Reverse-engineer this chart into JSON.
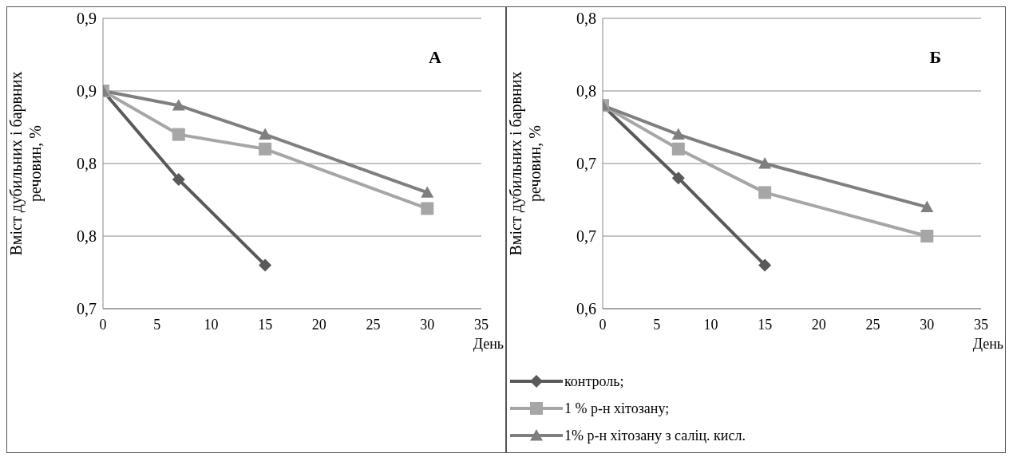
{
  "chart_data": [
    {
      "type": "line",
      "ylabel": "Вміст дубильних і барвних речовин, %",
      "xlabel": "День",
      "annotations": [
        "А"
      ],
      "xlim": [
        0,
        35
      ],
      "xticks": [
        0,
        5,
        10,
        15,
        20,
        25,
        30,
        35
      ],
      "ylim": [
        0.7,
        0.9
      ],
      "yticks": [
        {
          "value": 0.7,
          "label": "0,7"
        },
        {
          "value": 0.75,
          "label": "0,8"
        },
        {
          "value": 0.8,
          "label": "0,8"
        },
        {
          "value": 0.85,
          "label": "0,9"
        },
        {
          "value": 0.9,
          "label": "0,9"
        }
      ],
      "grid": "y",
      "legend": false,
      "series": [
        {
          "color": "#595959",
          "marker": "diamond",
          "x": [
            0,
            7,
            15
          ],
          "values": [
            0.85,
            0.789,
            0.73
          ]
        },
        {
          "color": "#a6a6a6",
          "marker": "square",
          "x": [
            0,
            7,
            15,
            30
          ],
          "values": [
            0.85,
            0.82,
            0.81,
            0.769
          ]
        },
        {
          "color": "#7f7f7f",
          "marker": "triangle",
          "x": [
            0,
            7,
            15,
            30
          ],
          "values": [
            0.85,
            0.84,
            0.82,
            0.78
          ]
        }
      ]
    },
    {
      "type": "line",
      "ylabel": "Вміст дубильних і барвних речовин, %",
      "xlabel": "День",
      "annotations": [
        "Б"
      ],
      "xlim": [
        0,
        35
      ],
      "xticks": [
        0,
        5,
        10,
        15,
        20,
        25,
        30,
        35
      ],
      "ylim": [
        0.6,
        0.8
      ],
      "yticks": [
        {
          "value": 0.6,
          "label": "0,6"
        },
        {
          "value": 0.65,
          "label": "0,7"
        },
        {
          "value": 0.7,
          "label": "0,7"
        },
        {
          "value": 0.75,
          "label": "0,8"
        },
        {
          "value": 0.8,
          "label": "0,8"
        }
      ],
      "grid": "y",
      "legend": "bottom left",
      "series": [
        {
          "name": "контроль;",
          "color": "#595959",
          "marker": "diamond",
          "x": [
            0,
            7,
            15
          ],
          "values": [
            0.74,
            0.69,
            0.63
          ]
        },
        {
          "name": "1 % р-н хітозану;",
          "color": "#a6a6a6",
          "marker": "square",
          "x": [
            0,
            7,
            15,
            30
          ],
          "values": [
            0.74,
            0.71,
            0.68,
            0.65
          ]
        },
        {
          "name": "1% р-н хітозану з саліц. кисл.",
          "color": "#7f7f7f",
          "marker": "triangle",
          "x": [
            0,
            7,
            15,
            30
          ],
          "values": [
            0.74,
            0.72,
            0.7,
            0.67
          ]
        }
      ]
    }
  ]
}
